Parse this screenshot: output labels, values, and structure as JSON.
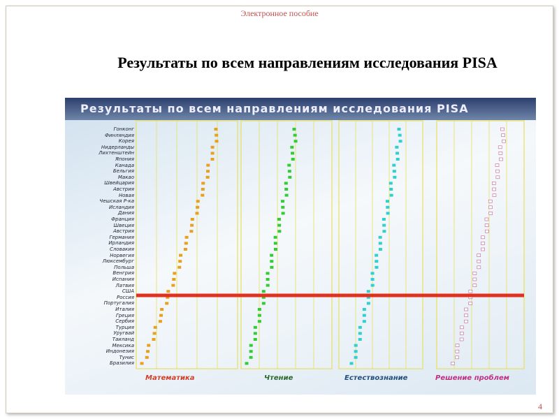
{
  "header": "Электронное пособие",
  "title": "Результаты по всем направлениям исследования PISA",
  "figure": {
    "title": "Результаты по всем направлениям исследования PISA",
    "countries": [
      "Гонконг",
      "Финляндия",
      "Корея",
      "Нидерланды",
      "Лихтенштейн",
      "Япония",
      "Канада",
      "Бельгия",
      "Макао",
      "Швейцария",
      "Австрия",
      "Новая",
      "Чешская Р-ка",
      "Исландия",
      "Дания",
      "Франция",
      "Швеция",
      "Австрия",
      "Германия",
      "Ирландия",
      "Словакия",
      "Норвегия",
      "Люксембург",
      "Польша",
      "Венгрия",
      "Испания",
      "Латвия",
      "США",
      "Россия",
      "Португалия",
      "Италия",
      "Греция",
      "Сербия",
      "Турция",
      "Уругвай",
      "Таиланд",
      "Мексика",
      "Индонезия",
      "Тунис",
      "Бразилия"
    ],
    "panels": [
      "Математика",
      "Чтение",
      "Естествознание",
      "Решение проблем"
    ]
  },
  "page_number": "4"
}
